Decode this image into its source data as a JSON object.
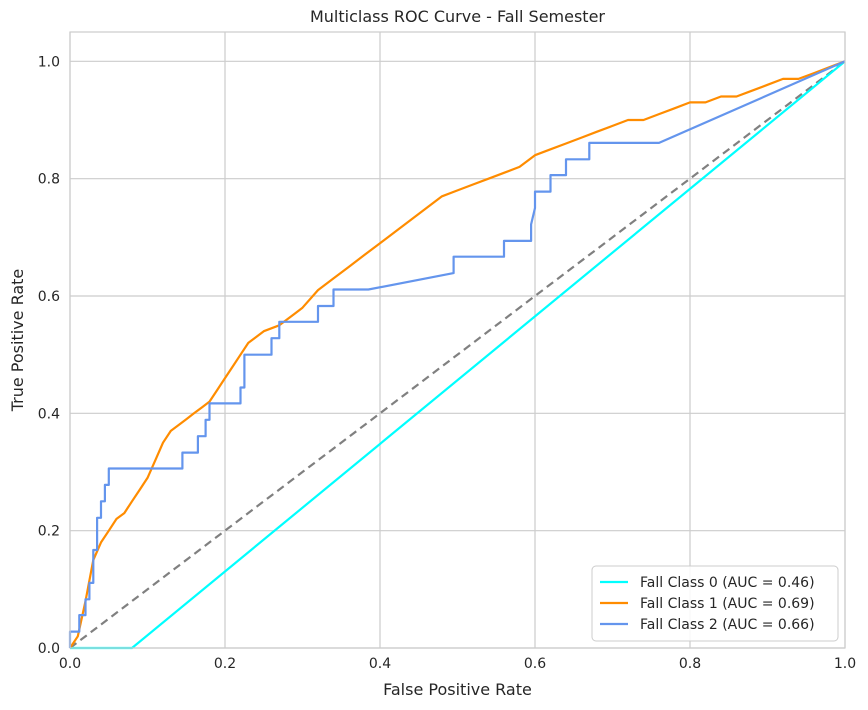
{
  "chart_data": {
    "type": "line",
    "title": "Multiclass ROC Curve - Fall Semester",
    "xlabel": "False Positive Rate",
    "ylabel": "True Positive Rate",
    "xlim": [
      0,
      1
    ],
    "ylim": [
      0,
      1.05
    ],
    "xticks": [
      "0.0",
      "0.2",
      "0.4",
      "0.6",
      "0.8",
      "1.0"
    ],
    "yticks": [
      "0.0",
      "0.2",
      "0.4",
      "0.6",
      "0.8",
      "1.0"
    ],
    "grid": true,
    "legend_position": "bottom-right",
    "series": [
      {
        "name": "Fall Class 0 (AUC = 0.46)",
        "color": "#00ffff",
        "x": [
          0,
          0.08,
          1.0
        ],
        "y": [
          0,
          0,
          1.0
        ]
      },
      {
        "name": "Fall Class 1 (AUC = 0.69)",
        "color": "#ff8c00",
        "x": [
          0,
          0.01,
          0.02,
          0.03,
          0.04,
          0.05,
          0.06,
          0.07,
          0.08,
          0.09,
          0.1,
          0.11,
          0.12,
          0.13,
          0.14,
          0.15,
          0.16,
          0.17,
          0.18,
          0.19,
          0.2,
          0.21,
          0.22,
          0.23,
          0.25,
          0.27,
          0.29,
          0.3,
          0.32,
          0.34,
          0.36,
          0.38,
          0.4,
          0.42,
          0.44,
          0.46,
          0.48,
          0.5,
          0.52,
          0.54,
          0.56,
          0.58,
          0.6,
          0.62,
          0.64,
          0.66,
          0.68,
          0.7,
          0.72,
          0.74,
          0.76,
          0.78,
          0.8,
          0.82,
          0.84,
          0.86,
          0.88,
          0.9,
          0.92,
          0.94,
          0.96,
          0.98,
          1.0
        ],
        "y": [
          0,
          0.02,
          0.08,
          0.15,
          0.18,
          0.2,
          0.22,
          0.23,
          0.25,
          0.27,
          0.29,
          0.32,
          0.35,
          0.37,
          0.38,
          0.39,
          0.4,
          0.41,
          0.42,
          0.44,
          0.46,
          0.48,
          0.5,
          0.52,
          0.54,
          0.55,
          0.57,
          0.58,
          0.61,
          0.63,
          0.65,
          0.67,
          0.69,
          0.71,
          0.73,
          0.75,
          0.77,
          0.78,
          0.79,
          0.8,
          0.81,
          0.82,
          0.84,
          0.85,
          0.86,
          0.87,
          0.88,
          0.89,
          0.9,
          0.9,
          0.91,
          0.92,
          0.93,
          0.93,
          0.94,
          0.94,
          0.95,
          0.96,
          0.97,
          0.97,
          0.98,
          0.99,
          1.0
        ]
      },
      {
        "name": "Fall Class 2 (AUC = 0.66)",
        "color": "#6495ed",
        "x": [
          0,
          0,
          0.012,
          0.012,
          0.02,
          0.02,
          0.025,
          0.025,
          0.03,
          0.03,
          0.035,
          0.035,
          0.04,
          0.04,
          0.045,
          0.045,
          0.05,
          0.05,
          0.145,
          0.145,
          0.165,
          0.165,
          0.175,
          0.175,
          0.18,
          0.18,
          0.22,
          0.22,
          0.225,
          0.225,
          0.26,
          0.26,
          0.27,
          0.27,
          0.32,
          0.32,
          0.34,
          0.34,
          0.385,
          0.495,
          0.495,
          0.56,
          0.56,
          0.595,
          0.595,
          0.6,
          0.6,
          0.62,
          0.62,
          0.64,
          0.64,
          0.67,
          0.67,
          0.76,
          1.0
        ],
        "y": [
          0,
          0.028,
          0.028,
          0.056,
          0.056,
          0.083,
          0.083,
          0.111,
          0.111,
          0.167,
          0.167,
          0.222,
          0.222,
          0.25,
          0.25,
          0.278,
          0.278,
          0.306,
          0.306,
          0.333,
          0.333,
          0.361,
          0.361,
          0.389,
          0.389,
          0.417,
          0.417,
          0.444,
          0.444,
          0.5,
          0.5,
          0.528,
          0.528,
          0.556,
          0.556,
          0.583,
          0.583,
          0.611,
          0.611,
          0.639,
          0.667,
          0.667,
          0.694,
          0.694,
          0.722,
          0.75,
          0.778,
          0.778,
          0.806,
          0.806,
          0.833,
          0.833,
          0.861,
          0.861,
          1.0
        ]
      }
    ],
    "reference_line": {
      "color": "#808080",
      "x": [
        0,
        1
      ],
      "y": [
        0,
        1
      ]
    }
  }
}
